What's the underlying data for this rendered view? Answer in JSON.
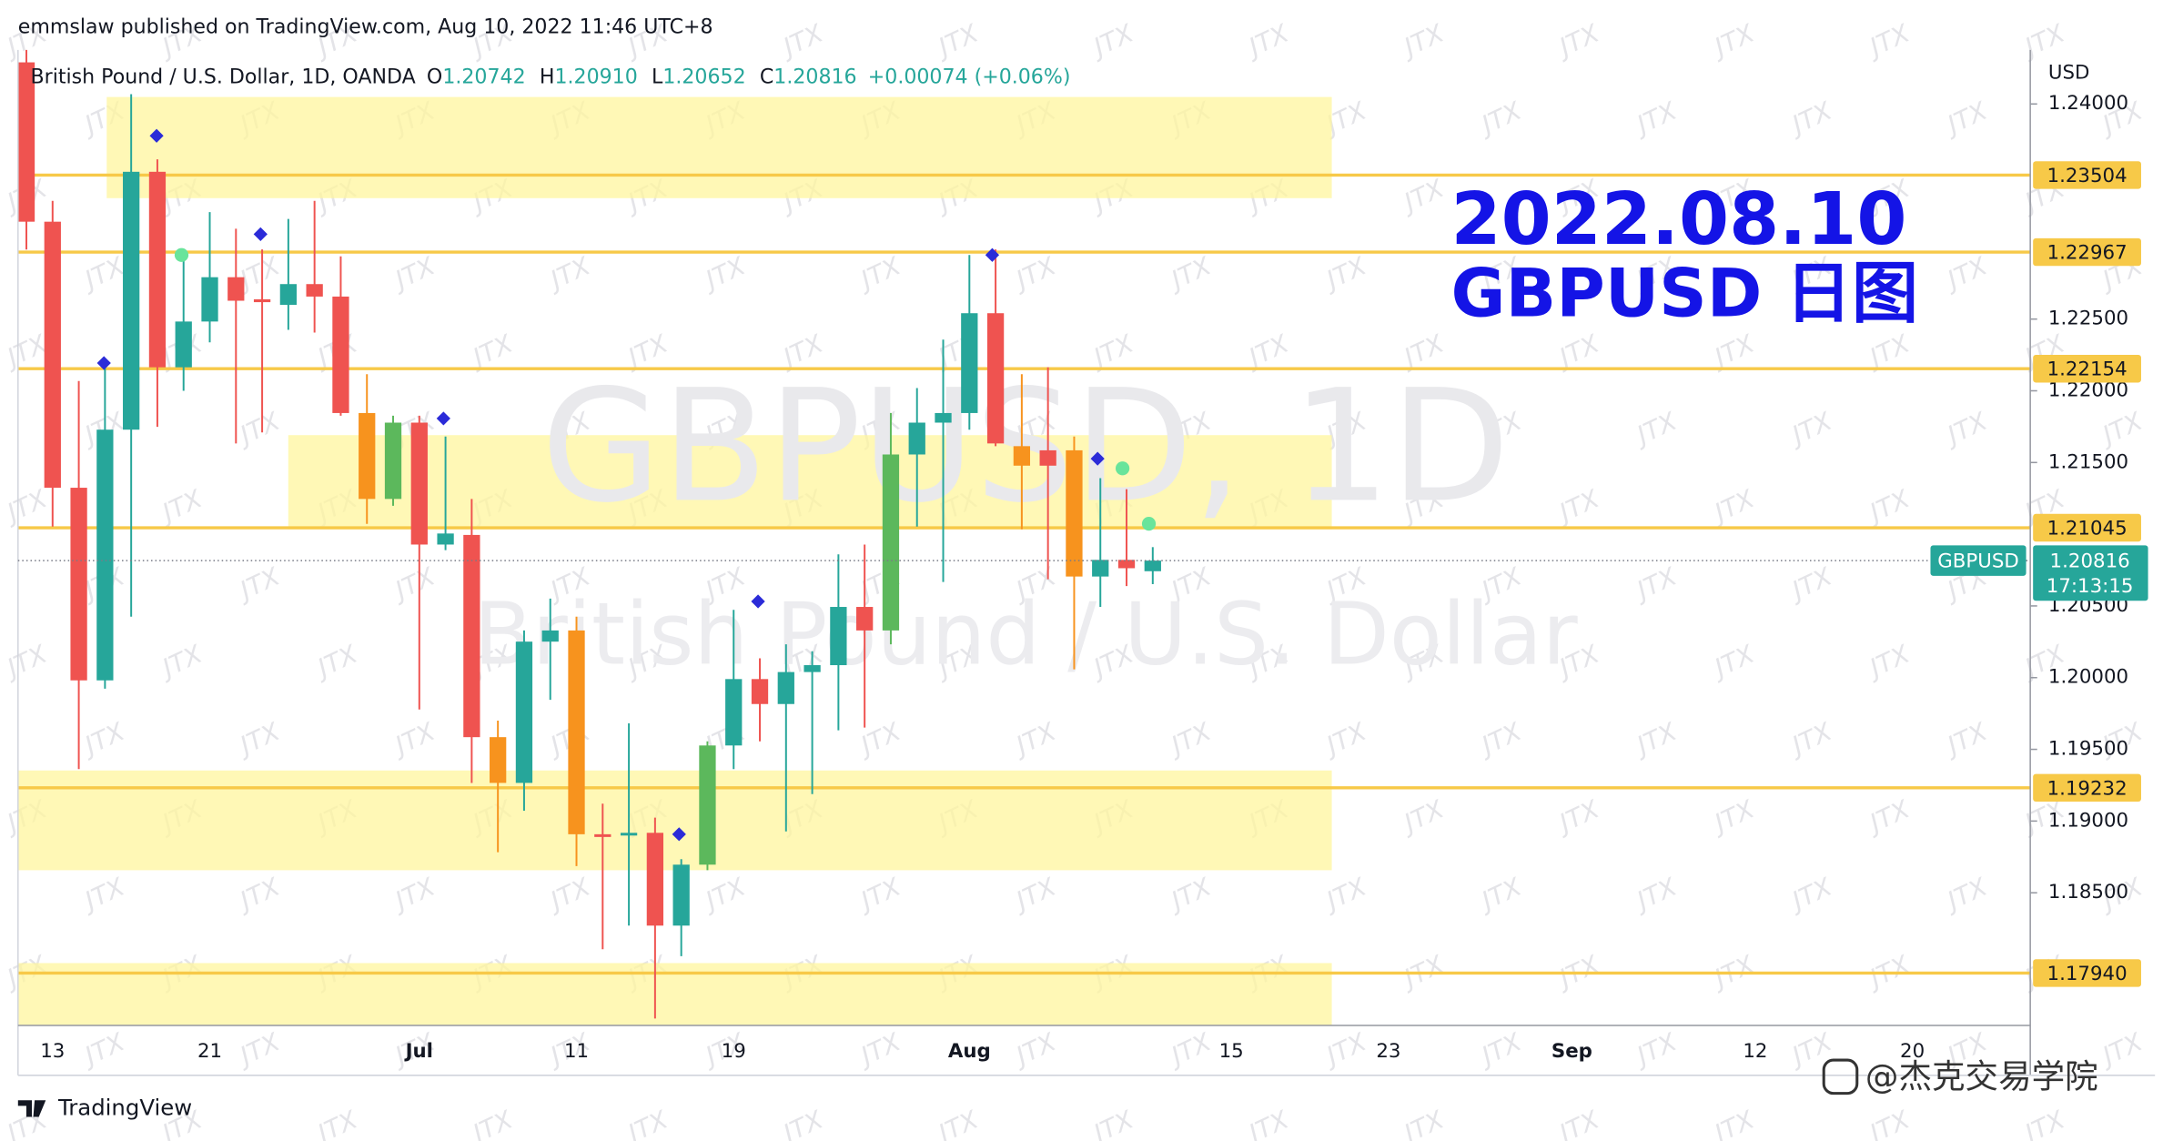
{
  "header": "emmslaw published on TradingView.com, Aug 10, 2022 11:46 UTC+8",
  "annotation": [
    "2022.08.10",
    "GBPUSD 日图"
  ],
  "watermark": "JTX",
  "footer": {
    "logo": "TradingView",
    "credit": "@杰克交易学院"
  },
  "chart_data": {
    "type": "candlestick",
    "title": "British Pound / U.S. Dollar, 1D, OANDA",
    "legend": {
      "prefixes": [
        "O",
        "H",
        "L",
        "C"
      ],
      "values": [
        "1.20742",
        "1.20910",
        "1.20652",
        "1.20816"
      ],
      "change": "+0.00074 (+0.06%)"
    },
    "currency": "USD",
    "symbol": "GBPUSD",
    "countdown": "17:13:15",
    "watermark_symbol": "GBPUSD, 1D",
    "watermark_name": "British Pound / U.S. Dollar",
    "categories": [
      null,
      "13",
      null,
      null,
      null,
      null,
      null,
      "21",
      null,
      null,
      null,
      null,
      null,
      null,
      null,
      "Jul",
      null,
      null,
      null,
      null,
      null,
      "11",
      null,
      null,
      null,
      null,
      null,
      "19",
      null,
      null,
      null,
      null,
      null,
      null,
      null,
      null,
      "Aug",
      null,
      null,
      null,
      null,
      null,
      null,
      null,
      null,
      null,
      "15",
      null,
      null,
      null,
      null,
      null,
      "23",
      null,
      null,
      null,
      null,
      null,
      null,
      "Sep",
      null,
      null,
      null,
      null,
      null,
      null,
      "12",
      null,
      null,
      null,
      null,
      null,
      "20",
      null,
      null,
      null,
      null
    ],
    "open": [
      1.2429,
      1.23179,
      1.21324,
      1.19981,
      1.21729,
      1.23527,
      1.22164,
      1.22483,
      1.22792,
      1.22638,
      1.22599,
      1.22744,
      1.22657,
      1.21845,
      1.21246,
      1.21778,
      1.20928,
      1.20995,
      1.19585,
      1.19266,
      1.20251,
      1.20329,
      1.18908,
      1.18899,
      1.18918,
      1.18271,
      1.18696,
      1.19527,
      1.1999,
      1.19816,
      1.20039,
      1.20087,
      1.20493,
      1.20329,
      1.21556,
      1.21778,
      1.21845,
      1.22541,
      1.21614,
      1.21585,
      1.21585,
      1.20705,
      1.20821,
      1.20742,
      null,
      null,
      null,
      null,
      null,
      null,
      null,
      null,
      null,
      null,
      null,
      null,
      null,
      null,
      null,
      null,
      null,
      null,
      null,
      null,
      null,
      null,
      null,
      null,
      null,
      null,
      null,
      null,
      null,
      null,
      null,
      null,
      null
    ],
    "high": [
      1.24435,
      1.23324,
      1.22068,
      1.22193,
      1.24068,
      1.23614,
      1.22937,
      1.23246,
      1.2313,
      1.22986,
      1.23198,
      1.23324,
      1.22937,
      1.22116,
      1.21826,
      1.21826,
      1.21681,
      1.21246,
      1.197,
      1.20329,
      1.20551,
      1.20425,
      1.19121,
      1.19681,
      1.19024,
      1.18734,
      1.19556,
      1.20473,
      1.20135,
      1.20232,
      1.20184,
      1.2086,
      1.20928,
      1.21845,
      1.22019,
      1.22357,
      1.22947,
      1.22986,
      1.22116,
      1.22164,
      1.21681,
      1.21391,
      1.21314,
      1.2091,
      null,
      null,
      null,
      null,
      null,
      null,
      null,
      null,
      null,
      null,
      null,
      null,
      null,
      null,
      null,
      null,
      null,
      null,
      null,
      null,
      null,
      null,
      null,
      null,
      null,
      null,
      null,
      null,
      null,
      null,
      null,
      null,
      null
    ],
    "low": [
      1.22985,
      1.21053,
      1.19362,
      1.19923,
      1.20425,
      1.21749,
      1.22,
      1.22338,
      1.21633,
      1.2171,
      1.22425,
      1.22406,
      1.21826,
      1.21072,
      1.21198,
      1.19778,
      1.20889,
      1.19266,
      1.18783,
      1.19072,
      1.19845,
      1.18686,
      1.18106,
      1.18271,
      1.17623,
      1.18058,
      1.18657,
      1.19362,
      1.19556,
      1.18928,
      1.19188,
      1.19633,
      1.19652,
      1.20232,
      1.21053,
      1.20667,
      1.21729,
      1.21614,
      1.21034,
      1.20686,
      1.20058,
      1.20493,
      1.20638,
      1.20652,
      null,
      null,
      null,
      null,
      null,
      null,
      null,
      null,
      null,
      null,
      null,
      null,
      null,
      null,
      null,
      null,
      null,
      null,
      null,
      null,
      null,
      null,
      null,
      null,
      null,
      null,
      null,
      null,
      null,
      null,
      null,
      null,
      null
    ],
    "close": [
      1.23179,
      1.21324,
      1.19981,
      1.21729,
      1.23527,
      1.22164,
      1.22483,
      1.22792,
      1.22628,
      1.22618,
      1.22744,
      1.22657,
      1.21845,
      1.21246,
      1.21778,
      1.20928,
      1.21005,
      1.19585,
      1.19266,
      1.20251,
      1.20329,
      1.18908,
      1.18889,
      1.18918,
      1.18271,
      1.18696,
      1.19527,
      1.1999,
      1.19816,
      1.20039,
      1.20087,
      1.20493,
      1.20329,
      1.21556,
      1.21778,
      1.21845,
      1.22541,
      1.21633,
      1.21478,
      1.21478,
      1.20705,
      1.20821,
      1.20763,
      1.20816,
      null,
      null,
      null,
      null,
      null,
      null,
      null,
      null,
      null,
      null,
      null,
      null,
      null,
      null,
      null,
      null,
      null,
      null,
      null,
      null,
      null,
      null,
      null,
      null,
      null,
      null,
      null,
      null,
      null,
      null,
      null,
      null,
      null
    ],
    "colors": [
      "#ef5350",
      "#ef5350",
      "#ef5350",
      "#26a69a",
      "#26a69a",
      "#ef5350",
      "#26a69a",
      "#26a69a",
      "#ef5350",
      "#ef5350",
      "#26a69a",
      "#ef5350",
      "#ef5350",
      "#f7931e",
      "#5cb85c",
      "#ef5350",
      "#26a69a",
      "#ef5350",
      "#f7931e",
      "#26a69a",
      "#26a69a",
      "#f7931e",
      "#ef5350",
      "#26a69a",
      "#ef5350",
      "#26a69a",
      "#5cb85c",
      "#26a69a",
      "#ef5350",
      "#26a69a",
      "#26a69a",
      "#26a69a",
      "#ef5350",
      "#5cb85c",
      "#26a69a",
      "#26a69a",
      "#26a69a",
      "#ef5350",
      "#f7931e",
      "#ef5350",
      "#f7931e",
      "#26a69a",
      "#ef5350",
      "#26a69a",
      null,
      null,
      null,
      null,
      null,
      null,
      null,
      null,
      null,
      null,
      null,
      null,
      null,
      null,
      null,
      null,
      null,
      null,
      null,
      null,
      null,
      null,
      null,
      null,
      null,
      null,
      null,
      null,
      null,
      null,
      null,
      null,
      null
    ],
    "ylim": [
      1.17575,
      1.24377
    ],
    "yticks": [
      {
        "value": 1.185,
        "label": "1.18500"
      },
      {
        "value": 1.19,
        "label": "1.19000"
      },
      {
        "value": 1.195,
        "label": "1.19500"
      },
      {
        "value": 1.2,
        "label": "1.20000"
      },
      {
        "value": 1.205,
        "label": "1.20500"
      },
      {
        "value": 1.215,
        "label": "1.21500"
      },
      {
        "value": 1.22,
        "label": "1.22000"
      },
      {
        "value": 1.225,
        "label": "1.22500"
      },
      {
        "value": 1.24,
        "label": "1.24000"
      }
    ],
    "levels": [
      1.23504,
      1.22967,
      1.22154,
      1.21045,
      1.19232,
      {
        "value": 1.1794,
        "label": "1.17940"
      }
    ],
    "level_color": "#f7c948",
    "price_color": "#26a69a",
    "grid": false
  }
}
